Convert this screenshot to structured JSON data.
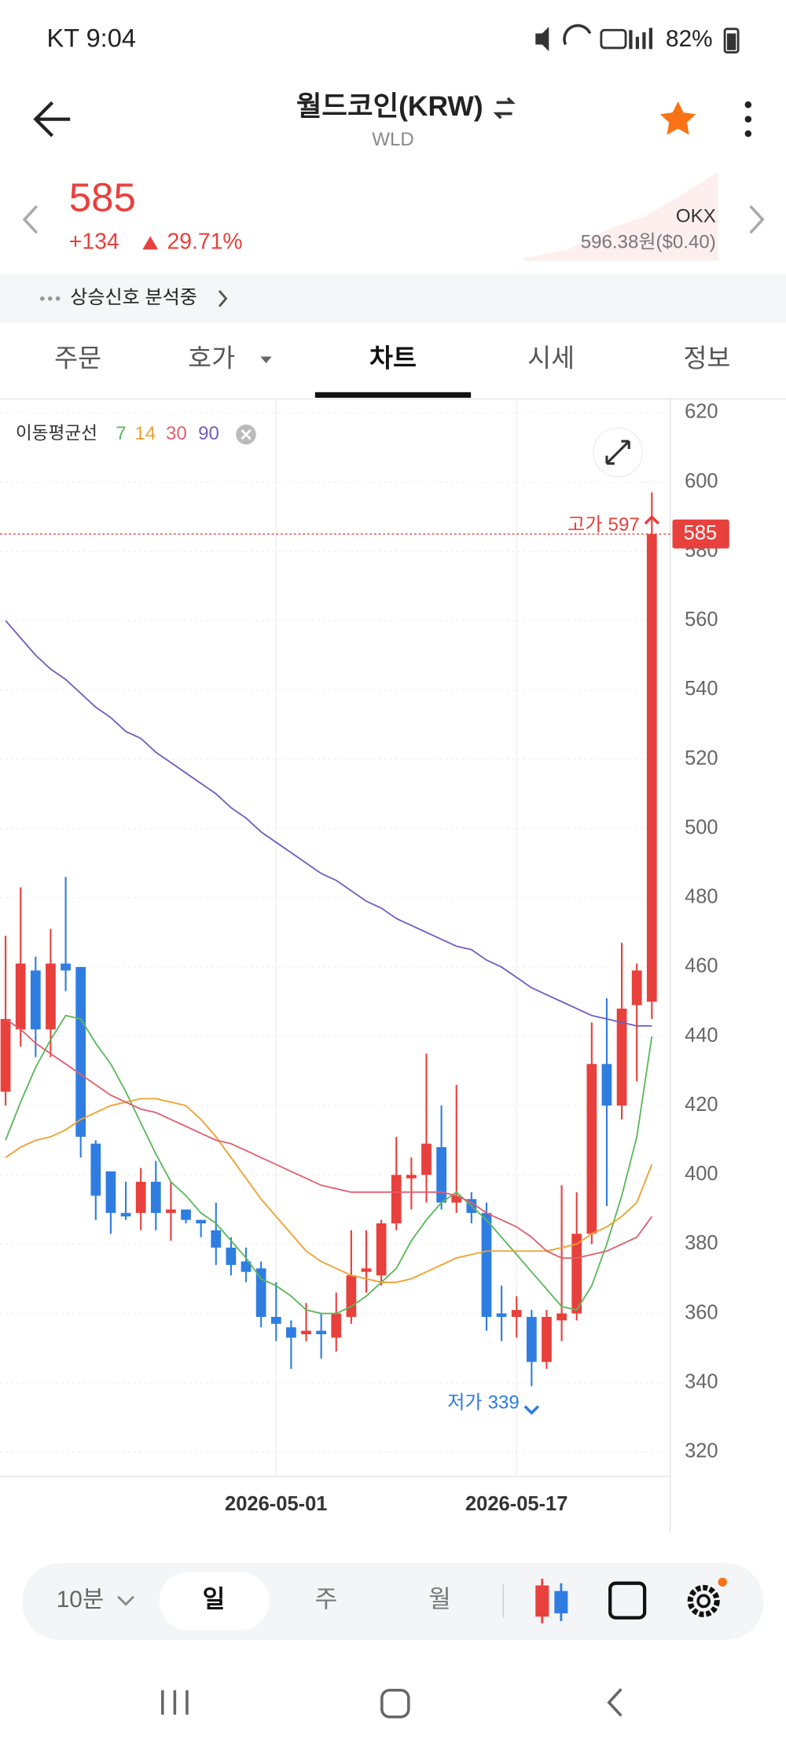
{
  "status_bar": {
    "carrier_time": "KT 9:04",
    "battery": "82%"
  },
  "header": {
    "title": "월드코인(KRW)",
    "subtitle": "WLD"
  },
  "price": {
    "current": "585",
    "change": "+134",
    "change_rate": "29.71%",
    "exchange": "OKX",
    "exchange_price": "596.38원($0.40)"
  },
  "signal": "상승신호 분석중",
  "tabs": [
    "주문",
    "호가",
    "차트",
    "시세",
    "정보"
  ],
  "toolbar": {
    "interval": "10분",
    "periods": [
      "일",
      "주",
      "월"
    ]
  },
  "chart_data": {
    "type": "candlestick",
    "legend_title": "이동평균선",
    "up_color": "#e8403c",
    "down_color": "#2f7de1",
    "categories": [
      null,
      null,
      null,
      null,
      null,
      null,
      null,
      null,
      null,
      null,
      null,
      null,
      null,
      null,
      null,
      null,
      null,
      null,
      "2026-05-01",
      null,
      null,
      null,
      null,
      null,
      null,
      null,
      null,
      null,
      null,
      null,
      null,
      null,
      null,
      null,
      "2026-05-17",
      null,
      null,
      null,
      null,
      null,
      null,
      null,
      null,
      null
    ],
    "open": [
      424,
      442,
      459,
      442,
      461,
      460,
      409,
      401,
      389,
      389,
      398,
      389,
      390,
      387,
      384,
      379,
      375,
      373,
      359,
      356,
      354,
      355,
      353,
      359,
      372,
      371,
      386,
      399,
      400,
      408,
      392,
      393,
      389,
      360,
      359,
      359,
      346,
      358,
      360,
      383,
      432,
      420,
      449,
      450
    ],
    "close": [
      445,
      461,
      442,
      461,
      459,
      411,
      394,
      389,
      388,
      398,
      389,
      390,
      387,
      386,
      379,
      374,
      372,
      359,
      357,
      353,
      355,
      354,
      360,
      371,
      373,
      386,
      400,
      400,
      409,
      392,
      394,
      389,
      359,
      359,
      361,
      346,
      359,
      360,
      383,
      432,
      420,
      448,
      459,
      585
    ],
    "high": [
      469,
      483,
      463,
      471,
      486,
      460,
      410,
      401,
      398,
      402,
      404,
      398,
      390,
      387,
      392,
      382,
      379,
      375,
      369,
      358,
      363,
      360,
      366,
      384,
      384,
      387,
      411,
      405,
      435,
      420,
      426,
      395,
      392,
      368,
      365,
      361,
      361,
      397,
      395,
      444,
      451,
      467,
      461,
      597
    ],
    "low": [
      420,
      437,
      434,
      434,
      453,
      405,
      387,
      383,
      387,
      384,
      384,
      381,
      386,
      382,
      374,
      371,
      369,
      356,
      352,
      344,
      352,
      347,
      349,
      357,
      366,
      368,
      384,
      390,
      392,
      390,
      389,
      386,
      355,
      352,
      353,
      339,
      344,
      352,
      358,
      380,
      391,
      416,
      427,
      445
    ],
    "series": [
      {
        "name": "7",
        "color": "#5cb85c",
        "values": [
          410,
          421,
          431,
          439,
          446,
          445,
          438,
          432,
          424,
          415,
          406,
          398,
          394,
          389,
          386,
          381,
          376,
          370,
          368,
          365,
          361,
          360,
          360,
          362,
          365,
          369,
          373,
          381,
          387,
          392,
          395,
          391,
          387,
          382,
          377,
          372,
          367,
          362,
          361,
          368,
          380,
          394,
          411,
          440
        ]
      },
      {
        "name": "14",
        "color": "#f0a030",
        "values": [
          405,
          408,
          410,
          411,
          413,
          416,
          418,
          420,
          421,
          422,
          422,
          421,
          420,
          416,
          411,
          405,
          399,
          393,
          388,
          383,
          378,
          375,
          373,
          371,
          370,
          369,
          369,
          370,
          372,
          374,
          376,
          377,
          378,
          378,
          378,
          378,
          378,
          379,
          380,
          383,
          385,
          388,
          392,
          403
        ]
      },
      {
        "name": "30",
        "color": "#e06070",
        "values": [
          445,
          442,
          438,
          435,
          432,
          429,
          426,
          423,
          421,
          419,
          418,
          416,
          414,
          412,
          410,
          409,
          407,
          405,
          403,
          401,
          399,
          397,
          396,
          395,
          395,
          395,
          395,
          395,
          395,
          395,
          394,
          392,
          389,
          387,
          385,
          382,
          378,
          376,
          376,
          377,
          378,
          380,
          382,
          388
        ]
      },
      {
        "name": "90",
        "color": "#7060c0",
        "values": [
          560,
          555,
          550,
          546,
          543,
          539,
          535,
          532,
          528,
          526,
          522,
          519,
          516,
          513,
          510,
          506,
          503,
          499,
          496,
          493,
          490,
          487,
          485,
          482,
          479,
          477,
          474,
          472,
          470,
          468,
          466,
          465,
          462,
          460,
          457,
          454,
          452,
          450,
          448,
          446,
          445,
          444,
          443,
          443
        ]
      }
    ],
    "ylim": [
      313,
      624
    ],
    "yticks": [
      320,
      340,
      360,
      380,
      400,
      420,
      440,
      460,
      480,
      500,
      520,
      540,
      560,
      580,
      600,
      620
    ],
    "grid": true,
    "last_price": 585,
    "annotations": [
      {
        "label": "고가",
        "value": 597
      },
      {
        "label": "저가",
        "value": 339
      }
    ]
  }
}
